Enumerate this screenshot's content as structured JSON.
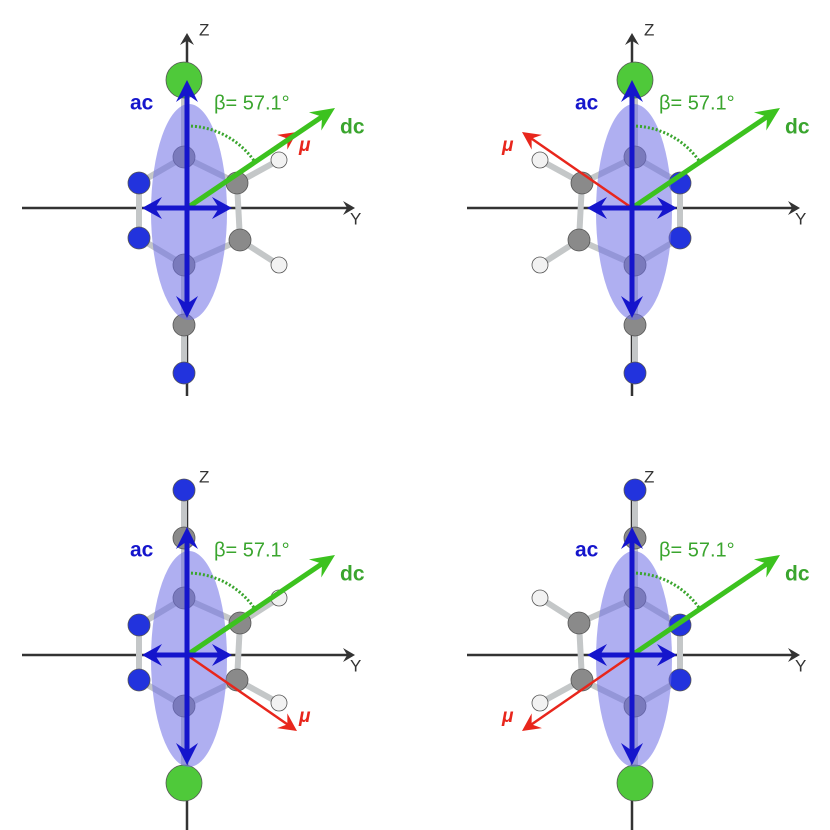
{
  "panels": [
    {
      "z_axis": "Z",
      "y_axis": "Y",
      "ac": "ac",
      "dc": "dc",
      "beta": "β= 57.1°",
      "mu": "μ"
    },
    {
      "z_axis": "Z",
      "y_axis": "Y",
      "ac": "ac",
      "dc": "dc",
      "beta": "β= 57.1°",
      "mu": "μ"
    },
    {
      "z_axis": "Z",
      "y_axis": "Y",
      "ac": "ac",
      "dc": "dc",
      "beta": "β= 57.1°",
      "mu": "μ"
    },
    {
      "z_axis": "Z",
      "y_axis": "Y",
      "ac": "ac",
      "dc": "dc",
      "beta": "β= 57.1°",
      "mu": "μ"
    }
  ]
}
